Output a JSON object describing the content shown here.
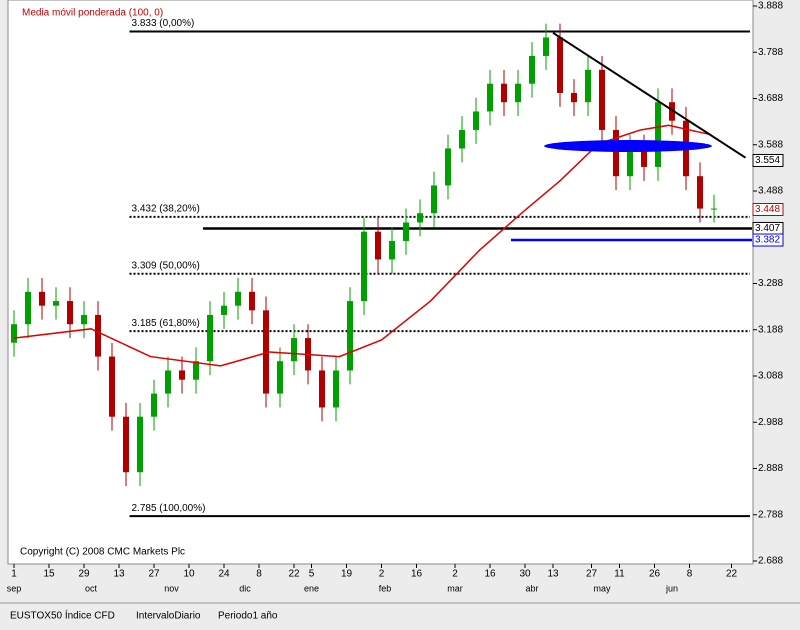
{
  "chart_data": {
    "type": "candlestick",
    "indicator_label": "Media móvil ponderada (100, 0)",
    "copyright": "Copyright (C) 2008 CMC Markets Plc",
    "footer": [
      "EUSTOX50 Índice CFD",
      "IntervaloDiario",
      "Periodo1 año"
    ],
    "xlim": [
      -1,
      211
    ],
    "ylim": [
      2.688,
      3.888
    ],
    "yticks": [
      2.688,
      2.788,
      2.888,
      2.988,
      3.088,
      3.188,
      3.288,
      3.388,
      3.488,
      3.588,
      3.688,
      3.788,
      3.888
    ],
    "xticks": [
      {
        "value": 0,
        "label": "1"
      },
      {
        "value": 10,
        "label": "15"
      },
      {
        "value": 20,
        "label": "29"
      },
      {
        "value": 30,
        "label": "13"
      },
      {
        "value": 40,
        "label": "27"
      },
      {
        "value": 50,
        "label": "10"
      },
      {
        "value": 60,
        "label": "24"
      },
      {
        "value": 70,
        "label": "8"
      },
      {
        "value": 80,
        "label": "22"
      },
      {
        "value": 85,
        "label": "5"
      },
      {
        "value": 95,
        "label": "19"
      },
      {
        "value": 105,
        "label": "2"
      },
      {
        "value": 115,
        "label": "16"
      },
      {
        "value": 126,
        "label": "2"
      },
      {
        "value": 136,
        "label": "16"
      },
      {
        "value": 146,
        "label": "30"
      },
      {
        "value": 154,
        "label": "13"
      },
      {
        "value": 165,
        "label": "27"
      },
      {
        "value": 173,
        "label": "11"
      },
      {
        "value": 183,
        "label": "26"
      },
      {
        "value": 193,
        "label": "8"
      },
      {
        "value": 205,
        "label": "22"
      }
    ],
    "months": [
      {
        "value": 0,
        "label": "sep"
      },
      {
        "value": 22,
        "label": "oct"
      },
      {
        "value": 45,
        "label": "nov"
      },
      {
        "value": 66,
        "label": "dic"
      },
      {
        "value": 85,
        "label": "ene"
      },
      {
        "value": 106,
        "label": "feb"
      },
      {
        "value": 126,
        "label": "mar"
      },
      {
        "value": 148,
        "label": "abr"
      },
      {
        "value": 168,
        "label": "may"
      },
      {
        "value": 188,
        "label": "jun"
      }
    ],
    "candles": {
      "up_color": "#00a000",
      "down_color": "#b00000",
      "x": [
        0,
        4,
        8,
        12,
        16,
        20,
        24,
        28,
        32,
        36,
        40,
        44,
        48,
        52,
        56,
        60,
        64,
        68,
        72,
        76,
        80,
        84,
        88,
        92,
        96,
        100,
        104,
        108,
        112,
        116,
        120,
        124,
        128,
        132,
        136,
        140,
        144,
        148,
        152,
        156,
        160,
        164,
        168,
        172,
        176,
        180,
        184,
        188,
        192,
        196,
        200
      ],
      "open": [
        3.16,
        3.2,
        3.27,
        3.24,
        3.25,
        3.2,
        3.22,
        3.13,
        3.0,
        2.88,
        3.0,
        3.05,
        3.1,
        3.08,
        3.12,
        3.22,
        3.24,
        3.27,
        3.23,
        3.05,
        3.12,
        3.17,
        3.1,
        3.02,
        3.1,
        3.25,
        3.4,
        3.34,
        3.38,
        3.42,
        3.44,
        3.5,
        3.58,
        3.62,
        3.66,
        3.72,
        3.68,
        3.72,
        3.78,
        3.82,
        3.7,
        3.68,
        3.75,
        3.62,
        3.52,
        3.58,
        3.54,
        3.68,
        3.64,
        3.52,
        3.45
      ],
      "high": [
        3.23,
        3.3,
        3.3,
        3.28,
        3.28,
        3.25,
        3.25,
        3.16,
        3.03,
        3.03,
        3.08,
        3.13,
        3.13,
        3.15,
        3.25,
        3.27,
        3.3,
        3.3,
        3.26,
        3.15,
        3.2,
        3.2,
        3.13,
        3.13,
        3.28,
        3.43,
        3.43,
        3.41,
        3.45,
        3.47,
        3.53,
        3.61,
        3.65,
        3.69,
        3.75,
        3.75,
        3.75,
        3.81,
        3.85,
        3.85,
        3.73,
        3.78,
        3.78,
        3.65,
        3.61,
        3.61,
        3.71,
        3.71,
        3.67,
        3.55,
        3.48
      ],
      "low": [
        3.13,
        3.17,
        3.21,
        3.21,
        3.17,
        3.17,
        3.1,
        2.97,
        2.85,
        2.85,
        2.97,
        3.02,
        3.05,
        3.05,
        3.09,
        3.19,
        3.21,
        3.2,
        3.02,
        3.02,
        3.09,
        3.07,
        2.99,
        2.99,
        3.07,
        3.22,
        3.31,
        3.31,
        3.35,
        3.39,
        3.41,
        3.47,
        3.55,
        3.59,
        3.63,
        3.65,
        3.65,
        3.69,
        3.75,
        3.67,
        3.65,
        3.65,
        3.59,
        3.49,
        3.49,
        3.51,
        3.51,
        3.61,
        3.49,
        3.42,
        3.42
      ],
      "close": [
        3.2,
        3.27,
        3.24,
        3.25,
        3.2,
        3.22,
        3.13,
        3.0,
        2.88,
        3.0,
        3.05,
        3.1,
        3.08,
        3.12,
        3.22,
        3.24,
        3.27,
        3.23,
        3.05,
        3.12,
        3.17,
        3.1,
        3.02,
        3.1,
        3.25,
        3.4,
        3.34,
        3.38,
        3.42,
        3.44,
        3.5,
        3.58,
        3.62,
        3.66,
        3.72,
        3.68,
        3.72,
        3.78,
        3.82,
        3.7,
        3.68,
        3.75,
        3.62,
        3.52,
        3.58,
        3.54,
        3.68,
        3.64,
        3.52,
        3.45,
        3.45
      ]
    },
    "moving_average": {
      "color": "#e00000",
      "x": [
        0,
        22,
        39,
        59,
        73,
        93,
        105,
        119,
        133,
        145,
        156,
        167,
        179,
        187,
        199
      ],
      "values": [
        3.17,
        3.19,
        3.13,
        3.11,
        3.14,
        3.13,
        3.166,
        3.25,
        3.36,
        3.44,
        3.51,
        3.59,
        3.62,
        3.63,
        3.61
      ]
    },
    "fib_levels": {
      "x_start": 33,
      "levels": [
        {
          "value": 3.833,
          "label": "3.833 (0,00%)",
          "solid": true
        },
        {
          "value": 3.432,
          "label": "3.432 (38,20%)",
          "solid": false
        },
        {
          "value": 3.309,
          "label": "3.309 (50,00%)",
          "solid": false
        },
        {
          "value": 3.185,
          "label": "3.185 (61,80%)",
          "solid": false
        },
        {
          "value": 2.785,
          "label": "2.785 (100,00%)",
          "solid": true
        }
      ]
    },
    "hlines": [
      {
        "value": 3.407,
        "x_start": 54,
        "color": "#000000"
      },
      {
        "value": 3.382,
        "x_start": 142,
        "color": "#0000ff"
      }
    ],
    "trendline": {
      "x": [
        154,
        209
      ],
      "values": [
        3.83,
        3.56
      ],
      "color": "#000000"
    },
    "price_labels": [
      {
        "value": 3.554,
        "color": "#000000"
      },
      {
        "value": 3.448,
        "color": "#c00000"
      },
      {
        "value": 3.407,
        "color": "#000000"
      },
      {
        "value": 3.382,
        "color": "#0000ff"
      }
    ]
  }
}
